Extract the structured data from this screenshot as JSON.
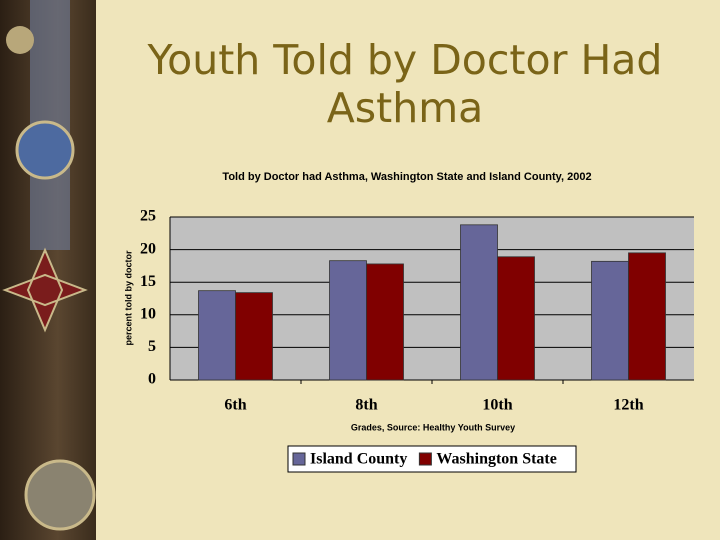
{
  "slide_title": "Youth Told by Doctor Had Asthma",
  "chart_data": {
    "type": "bar",
    "title": "Told by Doctor had Asthma, Washington State and Island County, 2002",
    "x_label": "Grades, Source: Healthy Youth Survey",
    "y_label": "percent told by doctor",
    "categories": [
      "6th",
      "8th",
      "10th",
      "12th"
    ],
    "series": [
      {
        "name": "Island County",
        "color": "#666699",
        "values": [
          13.7,
          18.3,
          23.8,
          18.2
        ]
      },
      {
        "name": "Washington State",
        "color": "#800000",
        "values": [
          13.4,
          17.8,
          18.9,
          19.5
        ]
      }
    ],
    "ylim": [
      0,
      25
    ],
    "yticks": [
      0,
      5,
      10,
      15,
      20,
      25
    ],
    "grid": true,
    "legend": "bottom"
  }
}
